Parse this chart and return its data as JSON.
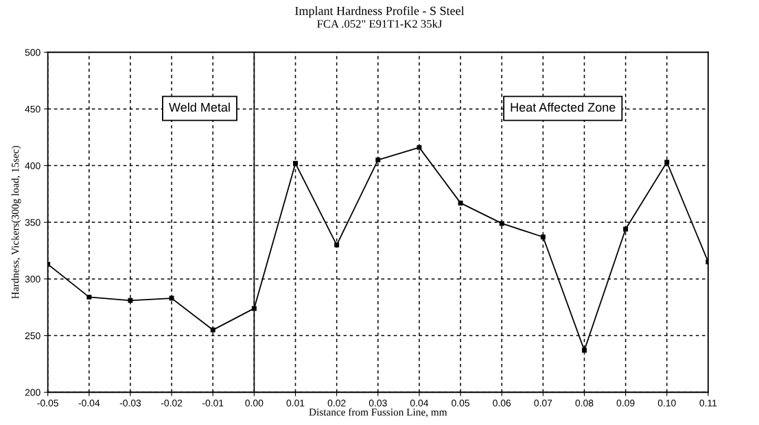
{
  "chart_data": {
    "type": "line",
    "title": "Implant Hardness Profile - S Steel",
    "subtitle": "FCA .052\" E91T1-K2 35kJ",
    "xlabel": "Distance from Fussion Line, mm",
    "ylabel": "Hardness, Vickers(300g load, 15sec)",
    "x": [
      -0.05,
      -0.04,
      -0.03,
      -0.02,
      -0.01,
      0.0,
      0.01,
      0.02,
      0.03,
      0.04,
      0.05,
      0.06,
      0.07,
      0.08,
      0.09,
      0.1,
      0.11
    ],
    "series": [
      {
        "color": "#000000",
        "values": [
          313,
          284,
          281,
          283,
          255,
          274,
          402,
          330,
          405,
          416,
          367,
          349,
          337,
          237,
          344,
          403,
          315
        ]
      }
    ],
    "xlim": [
      -0.05,
      0.11
    ],
    "ylim": [
      200,
      500
    ],
    "xticks": [
      {
        "value": -0.05,
        "label": "-0.05"
      },
      {
        "value": -0.04,
        "label": "-0.04"
      },
      {
        "value": -0.03,
        "label": "-0.03"
      },
      {
        "value": -0.02,
        "label": "-0.02"
      },
      {
        "value": -0.01,
        "label": "-0.01"
      },
      {
        "value": 0.0,
        "label": "0.00"
      },
      {
        "value": 0.01,
        "label": "0.01"
      },
      {
        "value": 0.02,
        "label": "0.02"
      },
      {
        "value": 0.03,
        "label": "0.03"
      },
      {
        "value": 0.04,
        "label": "0.04"
      },
      {
        "value": 0.05,
        "label": "0.05"
      },
      {
        "value": 0.06,
        "label": "0.06"
      },
      {
        "value": 0.07,
        "label": "0.07"
      },
      {
        "value": 0.08,
        "label": "0.08"
      },
      {
        "value": 0.09,
        "label": "0.09"
      },
      {
        "value": 0.1,
        "label": "0.10"
      },
      {
        "value": 0.11,
        "label": "0.11"
      }
    ],
    "yticks": [
      200,
      250,
      300,
      350,
      400,
      450,
      500
    ],
    "ref_lines": [
      {
        "axis": "x",
        "value": 0.0,
        "color": "#000000",
        "line_style": "solid"
      }
    ],
    "annotations": [
      "Weld Metal",
      "Heat Affected Zone"
    ],
    "grid": true,
    "marker": "square",
    "line_style": "solid",
    "legend": false
  }
}
